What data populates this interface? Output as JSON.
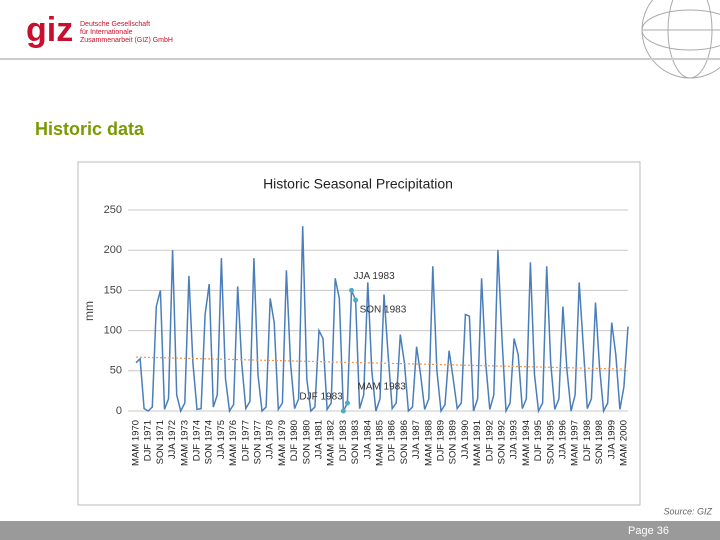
{
  "header": {
    "logo": "giz",
    "org_lines": [
      "Deutsche Gesellschaft",
      "für Internationale",
      "Zusammenarbeit (GIZ) GmbH"
    ]
  },
  "slide": {
    "title": "Historic data"
  },
  "chart_data": {
    "type": "line",
    "title": "Historic Seasonal Precipitation",
    "y_label": "mm",
    "ylim": [
      0,
      250
    ],
    "yticks": [
      0,
      50,
      100,
      150,
      200,
      250
    ],
    "grid": true,
    "categories": [
      "MAM 1970",
      null,
      null,
      "DJF 1971",
      null,
      null,
      "SON 1971",
      null,
      null,
      "JJA 1972",
      null,
      null,
      "MAM 1973",
      null,
      null,
      "DJF 1974",
      null,
      null,
      "SON 1974",
      null,
      null,
      "JJA 1975",
      null,
      null,
      "MAM 1976",
      null,
      null,
      "DJF 1977",
      null,
      null,
      "SON 1977",
      null,
      null,
      "JJA 1978",
      null,
      null,
      "MAM 1979",
      null,
      null,
      "DJF 1980",
      null,
      null,
      "SON 1980",
      null,
      null,
      "JJA 1981",
      null,
      null,
      "MAM 1982",
      null,
      null,
      "DJF 1983",
      null,
      null,
      "SON 1983",
      null,
      null,
      "JJA 1984",
      null,
      null,
      "MAM 1985",
      null,
      null,
      "DJF 1986",
      null,
      null,
      "SON 1986",
      null,
      null,
      "JJA 1987",
      null,
      null,
      "MAM 1988",
      null,
      null,
      "DJF 1989",
      null,
      null,
      "SON 1989",
      null,
      null,
      "JJA 1990",
      null,
      null,
      "MAM 1991",
      null,
      null,
      "DJF 1992",
      null,
      null,
      "SON 1992",
      null,
      null,
      "JJA 1993",
      null,
      null,
      "MAM 1994",
      null,
      null,
      "DJF 1995",
      null,
      null,
      "SON 1995",
      null,
      null,
      "JJA 1996",
      null,
      null,
      "MAM 1997",
      null,
      null,
      "DJF 1998",
      null,
      null,
      "SON 1998",
      null,
      null,
      "JJA 1999",
      null,
      null,
      "MAM 2000",
      null
    ],
    "series": [
      {
        "color": "#4a7ebb",
        "values": [
          60,
          65,
          3,
          0,
          5,
          130,
          150,
          2,
          15,
          200,
          20,
          0,
          10,
          168,
          60,
          2,
          3,
          120,
          158,
          5,
          20,
          190,
          40,
          0,
          8,
          155,
          60,
          3,
          12,
          190,
          45,
          0,
          5,
          140,
          110,
          2,
          10,
          175,
          60,
          3,
          15,
          230,
          40,
          0,
          5,
          100,
          90,
          2,
          10,
          165,
          140,
          0,
          10,
          150,
          138,
          3,
          20,
          160,
          50,
          0,
          15,
          145,
          70,
          3,
          10,
          95,
          60,
          0,
          5,
          80,
          45,
          2,
          15,
          180,
          50,
          0,
          8,
          75,
          40,
          3,
          10,
          120,
          118,
          0,
          15,
          165,
          60,
          2,
          20,
          200,
          90,
          0,
          10,
          90,
          70,
          3,
          15,
          185,
          45,
          0,
          10,
          180,
          60,
          2,
          15,
          130,
          50,
          0,
          20,
          160,
          80,
          3,
          15,
          135,
          55,
          0,
          10,
          110,
          70,
          2,
          30,
          105
        ]
      }
    ],
    "trendline": {
      "color": "#f79646",
      "values": [
        67,
        52
      ]
    },
    "annotations": [
      "JJA 1983",
      "SON 1983",
      "DJF 1983",
      "MAM 1983"
    ]
  },
  "footer": {
    "source": "Source: GIZ",
    "page": "Page 36"
  }
}
